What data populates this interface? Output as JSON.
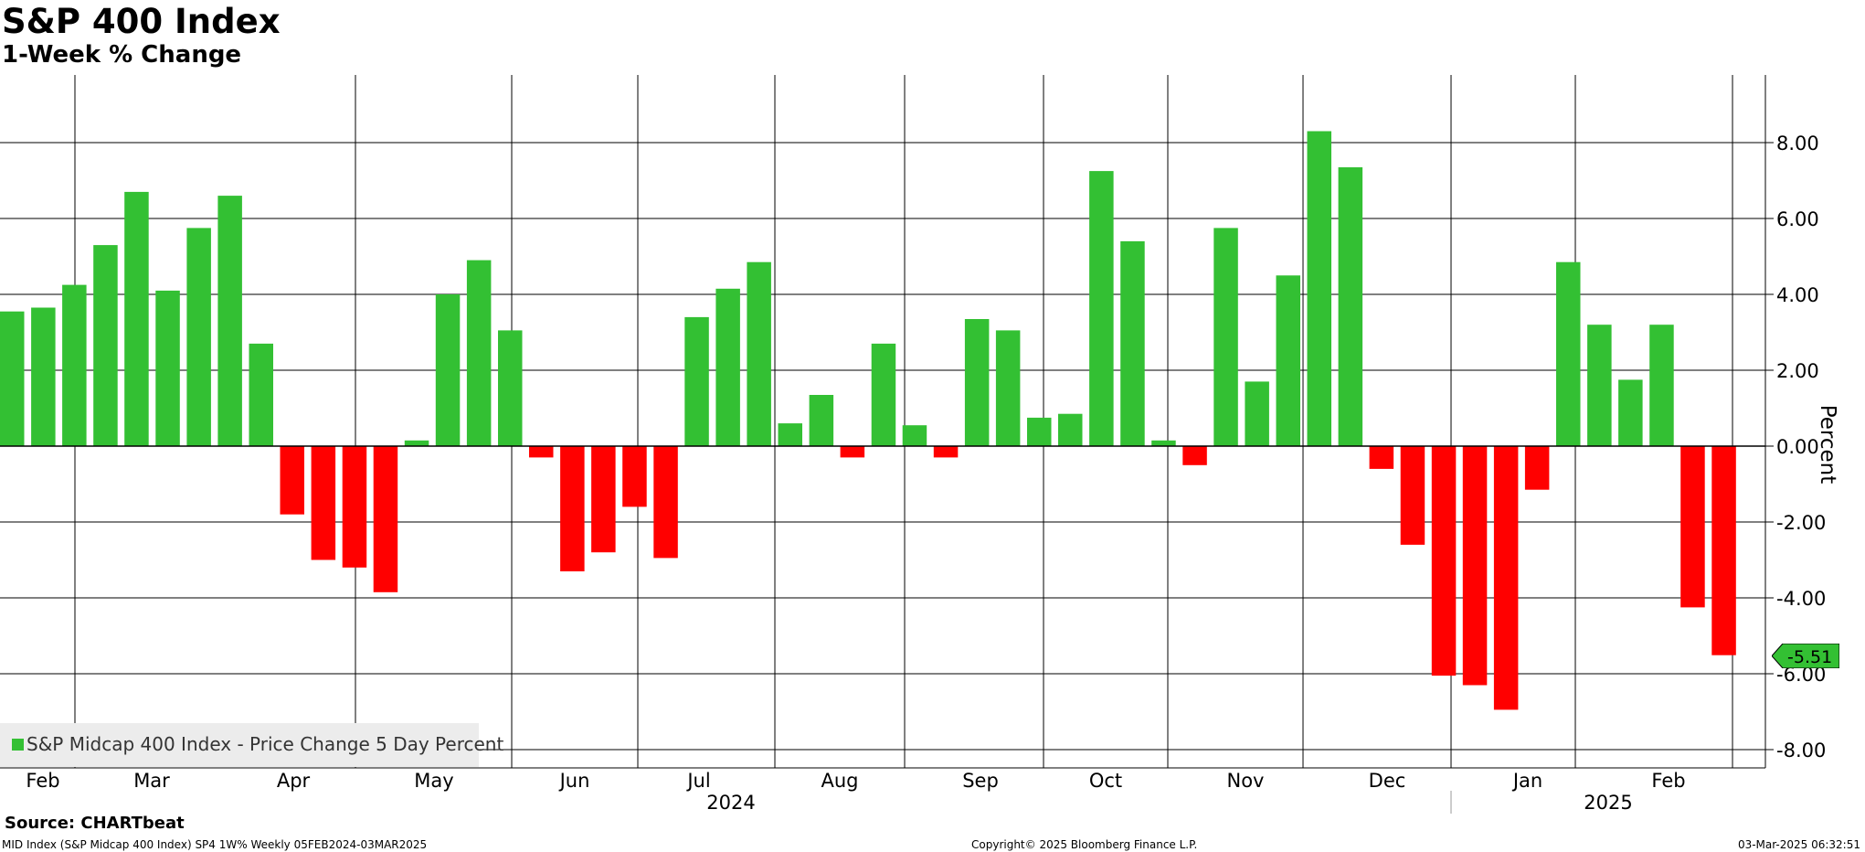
{
  "title": "S&P 400 Index",
  "subtitle": "1-Week % Change",
  "source": "Source: CHARTbeat",
  "footer": {
    "left": "MID Index (S&P Midcap 400 Index) SP4 1W% Weekly 05FEB2024-03MAR2025",
    "center": "Copyright© 2025 Bloomberg Finance L.P.",
    "right": "03-Mar-2025 06:32:51"
  },
  "colors": {
    "positive": "#33c033",
    "negative": "#ff0000",
    "last_tag": "#33c033"
  },
  "chart_data": {
    "type": "bar",
    "ylabel": "Percent",
    "ylim": [
      -8.5,
      9.8
    ],
    "yticks": [
      "8.00",
      "6.00",
      "4.00",
      "2.00",
      "0.00",
      "-2.00",
      "-4.00",
      "-6.00",
      "-8.00"
    ],
    "ytick_values": [
      8,
      6,
      4,
      2,
      0,
      -2,
      -4,
      -6,
      -8
    ],
    "grid": true,
    "legend": {
      "position": "bottom-left",
      "label": "S&P Midcap 400 Index - Price Change 5 Day Percent"
    },
    "last_value_label": "-5.51",
    "month_labels": [
      "Feb",
      "Mar",
      "Apr",
      "May",
      "Jun",
      "Jul",
      "Aug",
      "Sep",
      "Oct",
      "Nov",
      "Dec",
      "Jan",
      "Feb"
    ],
    "year_labels": [
      "2024",
      "2025"
    ],
    "series": [
      {
        "name": "S&P Midcap 400 Index - Price Change 5 Day Percent",
        "values": [
          3.55,
          3.65,
          4.25,
          5.3,
          6.7,
          4.1,
          5.75,
          6.6,
          2.7,
          -1.8,
          -3.0,
          -3.2,
          -3.85,
          0.15,
          4.0,
          4.9,
          3.05,
          -0.3,
          -3.3,
          -2.8,
          -1.6,
          -2.95,
          3.4,
          4.15,
          4.85,
          0.6,
          1.35,
          -0.3,
          2.7,
          0.55,
          -0.3,
          3.35,
          3.05,
          0.75,
          0.85,
          7.25,
          5.4,
          0.15,
          -0.5,
          5.75,
          1.7,
          4.5,
          8.3,
          7.35,
          -0.6,
          -2.6,
          -6.05,
          -6.3,
          -6.95,
          -1.15,
          4.85,
          3.2,
          1.75,
          3.2,
          -4.25,
          -5.51
        ]
      }
    ]
  }
}
